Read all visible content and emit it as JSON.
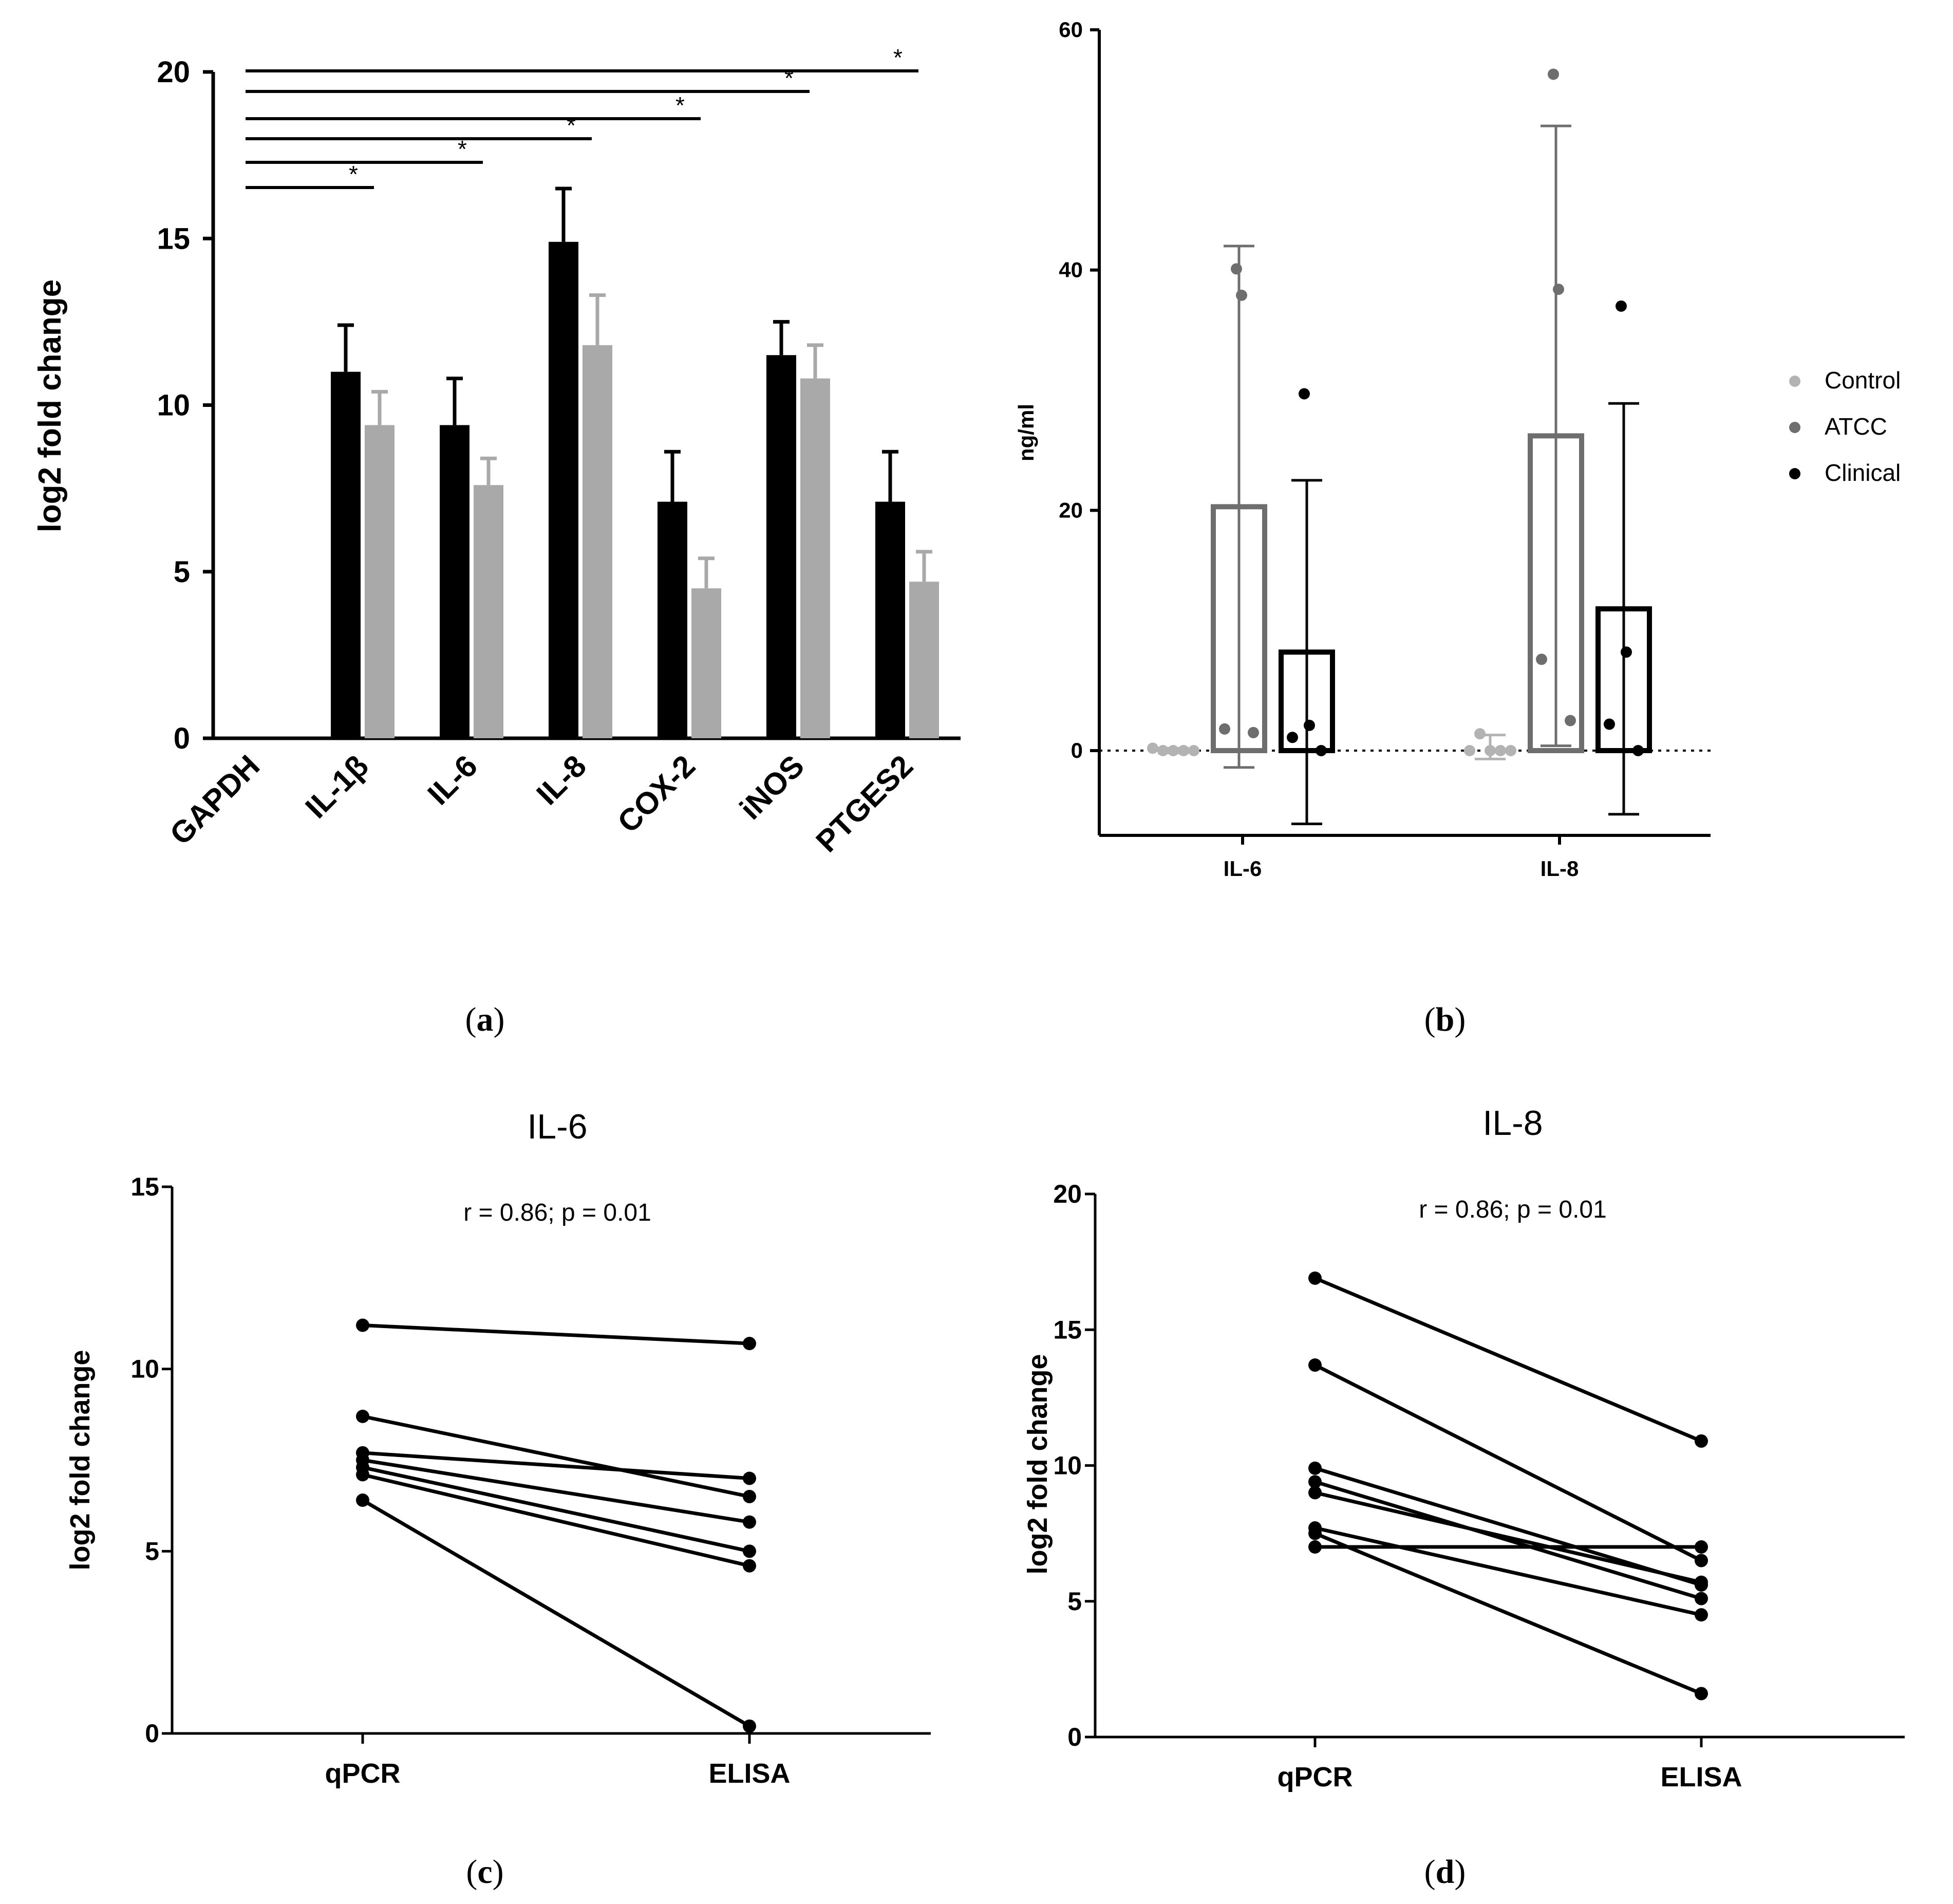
{
  "colors": {
    "black": "#000000",
    "grey": "#a9a9a9",
    "control": "#b3b3b3",
    "atcc": "#6e6e6e",
    "clinical": "#000000"
  },
  "chart_data": [
    {
      "panel": "a",
      "panel_label": "a",
      "type": "bar",
      "ylabel": "log2 fold change",
      "ylim": [
        0,
        20
      ],
      "yticks": [
        "0",
        "5",
        "10",
        "15",
        "20"
      ],
      "categories": [
        "GAPDH",
        "IL-1β",
        "IL-6",
        "IL-8",
        "COX-2",
        "iNOS",
        "PTGES2"
      ],
      "series": [
        {
          "name": "series 1 (black)",
          "values": [
            0,
            11.0,
            9.4,
            14.9,
            7.1,
            11.5,
            7.1
          ],
          "errors": [
            0,
            1.4,
            1.4,
            1.6,
            1.5,
            1.0,
            1.5
          ]
        },
        {
          "name": "series 2 (grey)",
          "values": [
            0,
            9.4,
            7.6,
            11.8,
            4.5,
            10.8,
            4.7
          ],
          "errors": [
            0,
            1.0,
            0.8,
            1.5,
            0.9,
            1.0,
            0.9
          ]
        }
      ],
      "significance": [
        {
          "from": "GAPDH",
          "to": "IL-1β",
          "label": "*"
        },
        {
          "from": "GAPDH",
          "to": "IL-6",
          "label": "*"
        },
        {
          "from": "GAPDH",
          "to": "IL-8",
          "label": "*"
        },
        {
          "from": "GAPDH",
          "to": "COX-2",
          "label": "*"
        },
        {
          "from": "GAPDH",
          "to": "iNOS",
          "label": "*"
        },
        {
          "from": "GAPDH",
          "to": "PTGES2",
          "label": "*"
        }
      ]
    },
    {
      "panel": "b",
      "panel_label": "b",
      "type": "bar",
      "ylabel": "ng/ml",
      "ylim": [
        -7,
        60
      ],
      "yticks": [
        "0",
        "20",
        "40",
        "60"
      ],
      "categories": [
        "IL-6",
        "IL-8"
      ],
      "legend": [
        "Control",
        "ATCC",
        "Clinical"
      ],
      "series": [
        {
          "name": "Control",
          "values": [
            0,
            0.3
          ],
          "errors": [
            0.2,
            1.0
          ],
          "points": [
            [
              0.2,
              0,
              0,
              0,
              0
            ],
            [
              0,
              1.4,
              0,
              0,
              0
            ]
          ]
        },
        {
          "name": "ATCC",
          "values": [
            20.3,
            26.2
          ],
          "errors": [
            21.7,
            25.8
          ],
          "points": [
            [
              40.1,
              37.9,
              1.8,
              1.5
            ],
            [
              56.3,
              38.4,
              7.6,
              2.5
            ]
          ]
        },
        {
          "name": "Clinical",
          "values": [
            8.2,
            11.8
          ],
          "errors": [
            14.3,
            17.1
          ],
          "points": [
            [
              29.7,
              2.1,
              1.1,
              0
            ],
            [
              37.0,
              8.2,
              2.2,
              0
            ]
          ]
        }
      ]
    },
    {
      "panel": "c",
      "panel_label": "c",
      "type": "line",
      "title": "IL-6",
      "annotation": "r = 0.86; p = 0.01",
      "ylabel": "log2 fold change",
      "ylim": [
        0,
        15
      ],
      "yticks": [
        "0",
        "5",
        "10",
        "15"
      ],
      "categories": [
        "qPCR",
        "ELISA"
      ],
      "pairs": [
        [
          11.2,
          10.7
        ],
        [
          8.7,
          6.5
        ],
        [
          7.7,
          7.0
        ],
        [
          7.5,
          5.8
        ],
        [
          7.3,
          5.0
        ],
        [
          7.1,
          4.6
        ],
        [
          6.4,
          0.2
        ]
      ]
    },
    {
      "panel": "d",
      "panel_label": "d",
      "type": "line",
      "title": "IL-8",
      "annotation": "r = 0.86; p = 0.01",
      "ylabel": "log2 fold change",
      "ylim": [
        0,
        20
      ],
      "yticks": [
        "0",
        "5",
        "10",
        "15",
        "20"
      ],
      "categories": [
        "qPCR",
        "ELISA"
      ],
      "pairs": [
        [
          16.9,
          10.9
        ],
        [
          13.7,
          6.5
        ],
        [
          9.9,
          5.6
        ],
        [
          9.4,
          5.1
        ],
        [
          9.0,
          5.7
        ],
        [
          7.7,
          4.5
        ],
        [
          7.5,
          1.6
        ],
        [
          7.0,
          7.0
        ]
      ]
    }
  ]
}
